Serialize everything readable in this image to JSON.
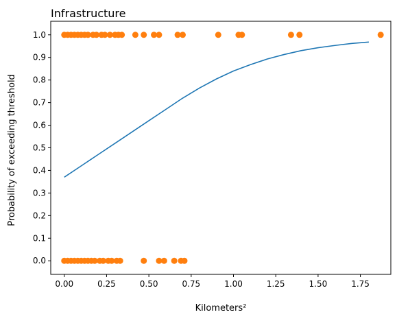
{
  "chart_data": {
    "type": "scatter",
    "title": "Infrastructure",
    "xlabel": "Kilometers²",
    "ylabel": "Probability of exceeding threshold",
    "xlim": [
      -0.08,
      1.93
    ],
    "ylim": [
      -0.06,
      1.06
    ],
    "xticks": [
      0.0,
      0.25,
      0.5,
      0.75,
      1.0,
      1.25,
      1.5,
      1.75
    ],
    "xtick_labels": [
      "0.00",
      "0.25",
      "0.50",
      "0.75",
      "1.00",
      "1.25",
      "1.50",
      "1.75"
    ],
    "yticks": [
      0.0,
      0.1,
      0.2,
      0.3,
      0.4,
      0.5,
      0.6,
      0.7,
      0.8,
      0.9,
      1.0
    ],
    "ytick_labels": [
      "0.0",
      "0.1",
      "0.2",
      "0.3",
      "0.4",
      "0.5",
      "0.6",
      "0.7",
      "0.8",
      "0.9",
      "1.0"
    ],
    "grid": false,
    "series": [
      {
        "kind": "scatter",
        "color": "#ff7f0e",
        "points": [
          [
            0.0,
            1
          ],
          [
            0.02,
            1
          ],
          [
            0.04,
            1
          ],
          [
            0.06,
            1
          ],
          [
            0.08,
            1
          ],
          [
            0.1,
            1
          ],
          [
            0.12,
            1
          ],
          [
            0.14,
            1
          ],
          [
            0.17,
            1
          ],
          [
            0.19,
            1
          ],
          [
            0.22,
            1
          ],
          [
            0.24,
            1
          ],
          [
            0.27,
            1
          ],
          [
            0.3,
            1
          ],
          [
            0.32,
            1
          ],
          [
            0.34,
            1
          ],
          [
            0.42,
            1
          ],
          [
            0.47,
            1
          ],
          [
            0.53,
            1
          ],
          [
            0.56,
            1
          ],
          [
            0.67,
            1
          ],
          [
            0.7,
            1
          ],
          [
            0.91,
            1
          ],
          [
            1.03,
            1
          ],
          [
            1.05,
            1
          ],
          [
            1.34,
            1
          ],
          [
            1.39,
            1
          ],
          [
            1.87,
            1
          ],
          [
            0.0,
            0
          ],
          [
            0.02,
            0
          ],
          [
            0.04,
            0
          ],
          [
            0.06,
            0
          ],
          [
            0.08,
            0
          ],
          [
            0.1,
            0
          ],
          [
            0.12,
            0
          ],
          [
            0.14,
            0
          ],
          [
            0.16,
            0
          ],
          [
            0.18,
            0
          ],
          [
            0.21,
            0
          ],
          [
            0.23,
            0
          ],
          [
            0.26,
            0
          ],
          [
            0.28,
            0
          ],
          [
            0.31,
            0
          ],
          [
            0.33,
            0
          ],
          [
            0.47,
            0
          ],
          [
            0.56,
            0
          ],
          [
            0.59,
            0
          ],
          [
            0.65,
            0
          ],
          [
            0.69,
            0
          ],
          [
            0.71,
            0
          ]
        ]
      },
      {
        "kind": "line",
        "color": "#1f77b4",
        "points": [
          [
            0.0,
            0.37
          ],
          [
            0.1,
            0.42
          ],
          [
            0.2,
            0.47
          ],
          [
            0.3,
            0.52
          ],
          [
            0.4,
            0.57
          ],
          [
            0.5,
            0.62
          ],
          [
            0.6,
            0.67
          ],
          [
            0.7,
            0.72
          ],
          [
            0.8,
            0.765
          ],
          [
            0.9,
            0.805
          ],
          [
            1.0,
            0.84
          ],
          [
            1.1,
            0.868
          ],
          [
            1.2,
            0.893
          ],
          [
            1.3,
            0.913
          ],
          [
            1.4,
            0.93
          ],
          [
            1.5,
            0.943
          ],
          [
            1.6,
            0.953
          ],
          [
            1.7,
            0.962
          ],
          [
            1.8,
            0.968
          ]
        ]
      }
    ]
  }
}
